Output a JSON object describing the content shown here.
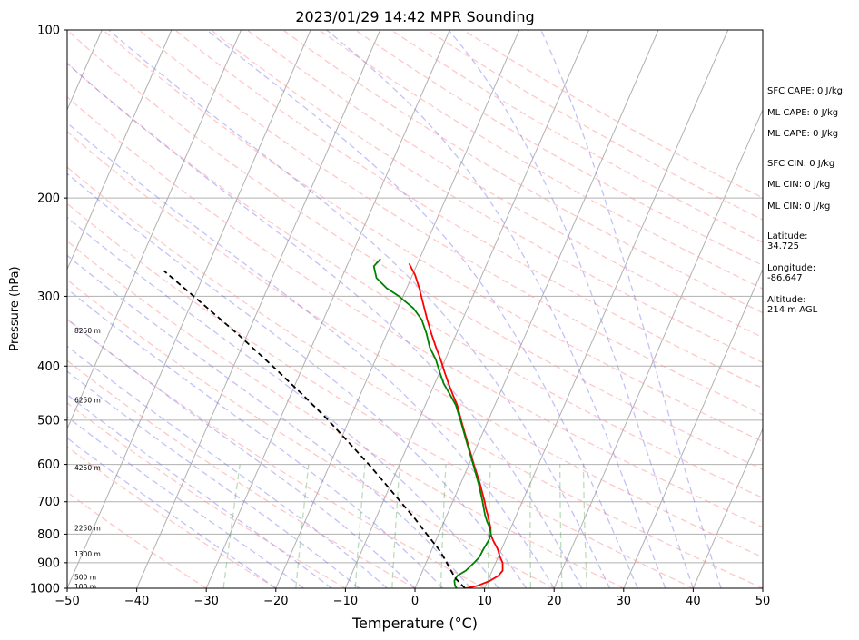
{
  "chart_data": {
    "type": "line",
    "title": "2023/01/29 14:42 MPR Sounding",
    "xlabel": "Temperature (°C)",
    "ylabel": "Pressure (hPa)",
    "xlim": [
      -50,
      50
    ],
    "ylim": [
      1000,
      100
    ],
    "y_scale": "log",
    "grid": true,
    "xticks": [
      "−50",
      "−40",
      "−30",
      "−20",
      "−10",
      "0",
      "10",
      "20",
      "30",
      "40",
      "50"
    ],
    "xtick_values": [
      -50,
      -40,
      -30,
      -20,
      -10,
      0,
      10,
      20,
      30,
      40,
      50
    ],
    "yticks": [
      "1000",
      "900",
      "800",
      "700",
      "600",
      "500",
      "400",
      "300",
      "200",
      "100"
    ],
    "ytick_values": [
      1000,
      900,
      800,
      700,
      600,
      500,
      400,
      300,
      200,
      100
    ],
    "height_labels": [
      {
        "text": "100 m",
        "p": 992
      },
      {
        "text": "500 m",
        "p": 955
      },
      {
        "text": "1300 m",
        "p": 868
      },
      {
        "text": "2250 m",
        "p": 780
      },
      {
        "text": "4250 m",
        "p": 608
      },
      {
        "text": "6250 m",
        "p": 460
      },
      {
        "text": "8250 m",
        "p": 345
      }
    ],
    "series": [
      {
        "color": "#ff0000",
        "points": [
          [
            1000,
            7.3
          ],
          [
            990,
            8.8
          ],
          [
            970,
            10.3
          ],
          [
            950,
            11.2
          ],
          [
            930,
            11.5
          ],
          [
            900,
            11.0
          ],
          [
            880,
            10.3
          ],
          [
            850,
            9.4
          ],
          [
            820,
            8.2
          ],
          [
            800,
            7.5
          ],
          [
            780,
            7.1
          ],
          [
            760,
            6.5
          ],
          [
            740,
            5.9
          ],
          [
            720,
            5.2
          ],
          [
            700,
            4.6
          ],
          [
            650,
            2.8
          ],
          [
            600,
            0.7
          ],
          [
            550,
            -1.5
          ],
          [
            500,
            -3.9
          ],
          [
            470,
            -5.4
          ],
          [
            450,
            -6.7
          ],
          [
            430,
            -8.0
          ],
          [
            410,
            -9.3
          ],
          [
            390,
            -10.6
          ],
          [
            370,
            -12.1
          ],
          [
            350,
            -13.6
          ],
          [
            330,
            -15.1
          ],
          [
            310,
            -16.6
          ],
          [
            290,
            -18.2
          ],
          [
            275,
            -19.6
          ],
          [
            262,
            -21.2
          ]
        ]
      },
      {
        "color": "#008000",
        "points": [
          [
            1000,
            6.0
          ],
          [
            990,
            5.6
          ],
          [
            970,
            5.2
          ],
          [
            950,
            5.3
          ],
          [
            930,
            6.2
          ],
          [
            900,
            6.9
          ],
          [
            880,
            7.3
          ],
          [
            850,
            7.4
          ],
          [
            820,
            7.6
          ],
          [
            800,
            7.5
          ],
          [
            780,
            7.0
          ],
          [
            760,
            6.2
          ],
          [
            740,
            5.5
          ],
          [
            720,
            4.9
          ],
          [
            700,
            4.3
          ],
          [
            650,
            2.6
          ],
          [
            600,
            0.6
          ],
          [
            550,
            -1.6
          ],
          [
            500,
            -4.0
          ],
          [
            470,
            -5.6
          ],
          [
            450,
            -7.1
          ],
          [
            430,
            -8.7
          ],
          [
            410,
            -10.0
          ],
          [
            390,
            -11.3
          ],
          [
            370,
            -13.0
          ],
          [
            350,
            -14.3
          ],
          [
            330,
            -15.9
          ],
          [
            315,
            -17.8
          ],
          [
            300,
            -20.6
          ],
          [
            290,
            -22.9
          ],
          [
            278,
            -25.0
          ],
          [
            265,
            -26.1
          ],
          [
            257,
            -25.6
          ]
        ]
      },
      {
        "color": "#000000",
        "style": "dashed",
        "points": [
          [
            1000,
            7.2
          ],
          [
            960,
            5.2
          ],
          [
            920,
            3.7
          ],
          [
            880,
            2.2
          ],
          [
            850,
            0.9
          ],
          [
            800,
            -1.7
          ],
          [
            750,
            -4.4
          ],
          [
            700,
            -7.5
          ],
          [
            650,
            -10.8
          ],
          [
            600,
            -14.4
          ],
          [
            550,
            -18.5
          ],
          [
            500,
            -23.0
          ],
          [
            450,
            -28.3
          ],
          [
            400,
            -34.4
          ],
          [
            350,
            -41.5
          ],
          [
            300,
            -50.1
          ],
          [
            270,
            -56.0
          ]
        ]
      }
    ]
  },
  "side_panel": {
    "sfc_cape": "SFC CAPE: 0 J/kg",
    "ml_cape_1": "ML CAPE: 0 J/kg",
    "ml_cape_2": "ML CAPE: 0 J/kg",
    "sfc_cin": "SFC CIN: 0 J/kg",
    "ml_cin_1": "ML CIN: 0 J/kg",
    "ml_cin_2": "ML CIN: 0 J/kg",
    "latitude_label": "Latitude:",
    "latitude_value": "34.725",
    "longitude_label": "Longitude:",
    "longitude_value": "-86.647",
    "altitude_label": "Altitude:",
    "altitude_value": "214 m AGL"
  }
}
